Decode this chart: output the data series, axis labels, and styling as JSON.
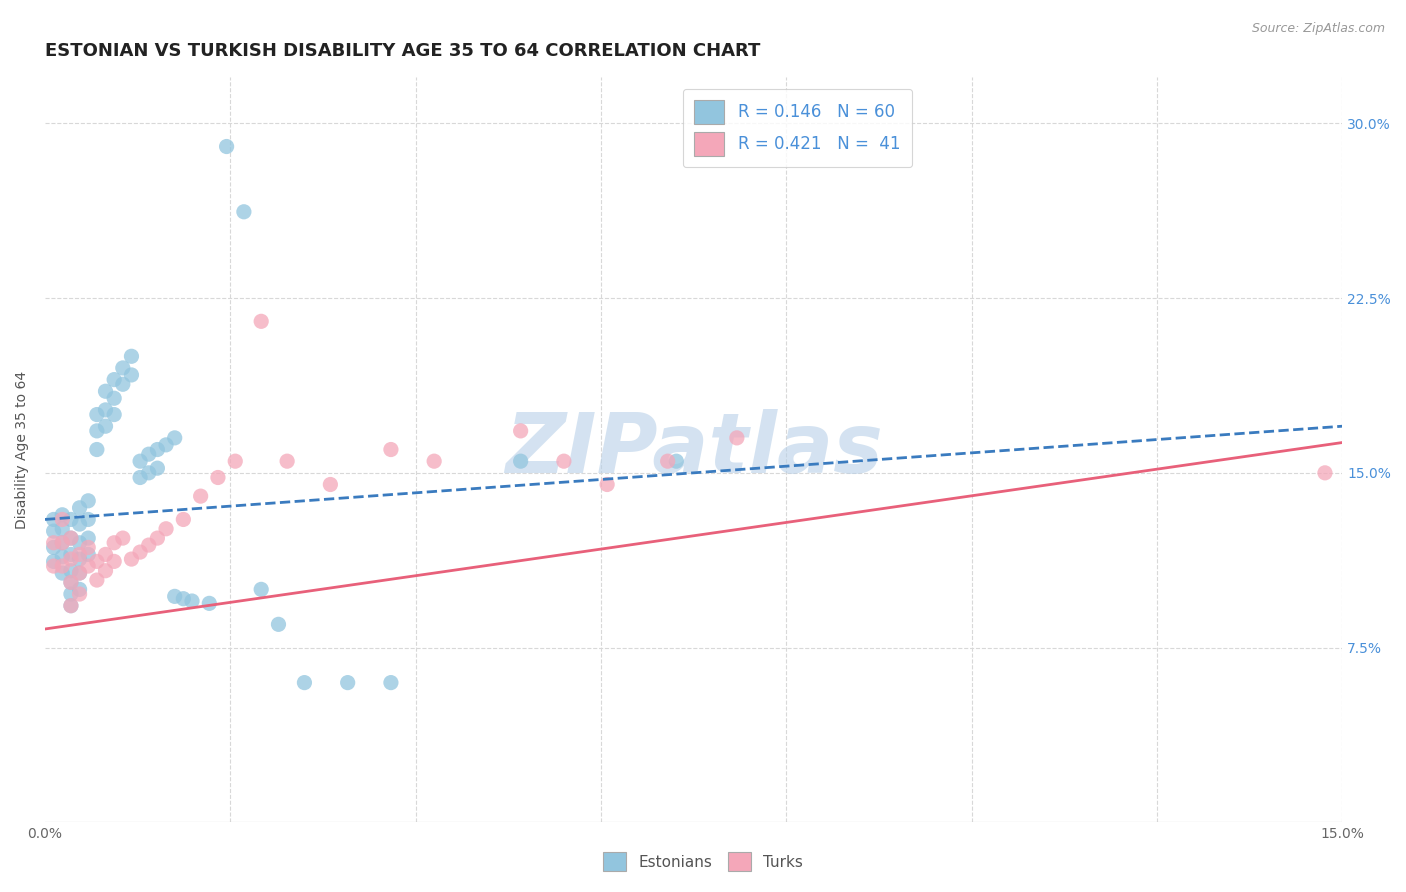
{
  "title": "ESTONIAN VS TURKISH DISABILITY AGE 35 TO 64 CORRELATION CHART",
  "source": "Source: ZipAtlas.com",
  "ylabel": "Disability Age 35 to 64",
  "xlim": [
    0.0,
    0.15
  ],
  "ylim": [
    0.0,
    0.32
  ],
  "xticks": [
    0.0,
    0.021428,
    0.042857,
    0.064286,
    0.085714,
    0.107143,
    0.128571,
    0.15
  ],
  "xtick_labels": [
    "0.0%",
    "",
    "",
    "",
    "",
    "",
    "",
    "15.0%"
  ],
  "yticks": [
    0.0,
    0.075,
    0.15,
    0.225,
    0.3
  ],
  "ytick_labels": [
    "",
    "7.5%",
    "15.0%",
    "22.5%",
    "30.0%"
  ],
  "blue_R": 0.146,
  "blue_N": 60,
  "pink_R": 0.421,
  "pink_N": 41,
  "blue_color": "#92c5de",
  "pink_color": "#f4a7b9",
  "blue_line_color": "#3a7bbf",
  "pink_line_color": "#e8607a",
  "watermark": "ZIPatlas",
  "watermark_color": "#b8d0e8",
  "background_color": "#ffffff",
  "grid_color": "#d8d8d8",
  "title_fontsize": 13,
  "axis_label_fontsize": 10,
  "tick_fontsize": 10,
  "blue_scatter_x": [
    0.001,
    0.001,
    0.001,
    0.001,
    0.002,
    0.002,
    0.002,
    0.002,
    0.002,
    0.003,
    0.003,
    0.003,
    0.003,
    0.003,
    0.003,
    0.003,
    0.004,
    0.004,
    0.004,
    0.004,
    0.004,
    0.004,
    0.005,
    0.005,
    0.005,
    0.005,
    0.006,
    0.006,
    0.006,
    0.007,
    0.007,
    0.007,
    0.008,
    0.008,
    0.008,
    0.009,
    0.009,
    0.01,
    0.01,
    0.011,
    0.011,
    0.012,
    0.012,
    0.013,
    0.013,
    0.014,
    0.015,
    0.015,
    0.016,
    0.017,
    0.019,
    0.021,
    0.023,
    0.025,
    0.027,
    0.03,
    0.035,
    0.04,
    0.055,
    0.073
  ],
  "blue_scatter_y": [
    0.13,
    0.125,
    0.118,
    0.112,
    0.132,
    0.126,
    0.12,
    0.114,
    0.107,
    0.13,
    0.122,
    0.115,
    0.108,
    0.103,
    0.098,
    0.093,
    0.135,
    0.128,
    0.12,
    0.113,
    0.107,
    0.1,
    0.138,
    0.13,
    0.122,
    0.115,
    0.175,
    0.168,
    0.16,
    0.185,
    0.177,
    0.17,
    0.19,
    0.182,
    0.175,
    0.195,
    0.188,
    0.2,
    0.192,
    0.155,
    0.148,
    0.158,
    0.15,
    0.16,
    0.152,
    0.162,
    0.165,
    0.097,
    0.096,
    0.095,
    0.094,
    0.29,
    0.262,
    0.1,
    0.085,
    0.06,
    0.06,
    0.06,
    0.155,
    0.155
  ],
  "pink_scatter_x": [
    0.001,
    0.001,
    0.002,
    0.002,
    0.002,
    0.003,
    0.003,
    0.003,
    0.003,
    0.004,
    0.004,
    0.004,
    0.005,
    0.005,
    0.006,
    0.006,
    0.007,
    0.007,
    0.008,
    0.008,
    0.009,
    0.01,
    0.011,
    0.012,
    0.013,
    0.014,
    0.016,
    0.018,
    0.02,
    0.022,
    0.025,
    0.028,
    0.033,
    0.04,
    0.045,
    0.055,
    0.06,
    0.065,
    0.072,
    0.08,
    0.148
  ],
  "pink_scatter_y": [
    0.12,
    0.11,
    0.13,
    0.12,
    0.11,
    0.122,
    0.113,
    0.103,
    0.093,
    0.115,
    0.107,
    0.098,
    0.118,
    0.11,
    0.112,
    0.104,
    0.115,
    0.108,
    0.12,
    0.112,
    0.122,
    0.113,
    0.116,
    0.119,
    0.122,
    0.126,
    0.13,
    0.14,
    0.148,
    0.155,
    0.215,
    0.155,
    0.145,
    0.16,
    0.155,
    0.168,
    0.155,
    0.145,
    0.155,
    0.165,
    0.15
  ],
  "blue_line_y0": 0.13,
  "blue_line_y1": 0.17,
  "pink_line_y0": 0.083,
  "pink_line_y1": 0.163
}
